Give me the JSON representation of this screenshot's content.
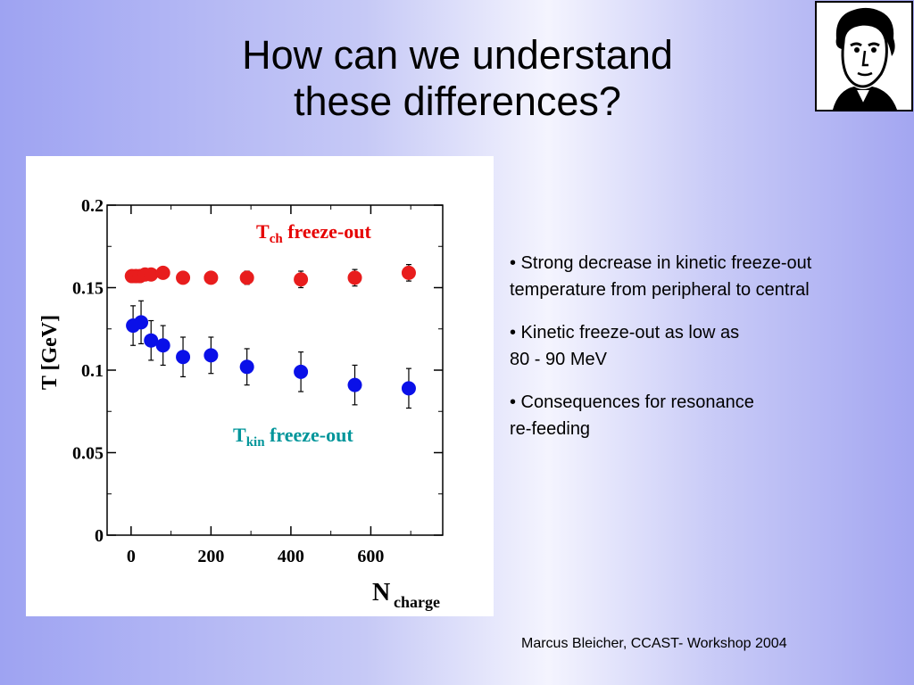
{
  "slide": {
    "title_line1": "How can we understand",
    "title_line2": "these differences?",
    "bullets": [
      [
        "• Strong decrease in kinetic freeze-out",
        "temperature from peripheral to central"
      ],
      [
        "• Kinetic freeze-out as low as",
        "80 - 90 MeV"
      ],
      [
        "• Consequences  for resonance",
        "re-feeding"
      ]
    ],
    "footer": "Marcus Bleicher, CCAST- Workshop 2004",
    "portrait_icon": "portrait-sketch-icon"
  },
  "chart_data": {
    "type": "scatter",
    "ylabel": "T [GeV]",
    "xlabel": "N",
    "xlabel_sub": "charge",
    "xlim": [
      -60,
      780
    ],
    "ylim": [
      0,
      0.2
    ],
    "xticks": [
      "0",
      "200",
      "400",
      "600"
    ],
    "yticks": [
      "0",
      "0.05",
      "0.1",
      "0.15",
      "0.2"
    ],
    "grid": false,
    "series": [
      {
        "name": "Tch freeze-out",
        "label_main": "T",
        "label_sub": "ch",
        "label_rest": " freeze-out",
        "label_color": "#e60000",
        "color": "#e81d1d",
        "x": [
          2,
          12,
          22,
          35,
          50,
          80,
          130,
          200,
          290,
          425,
          560,
          695
        ],
        "y": [
          0.157,
          0.157,
          0.157,
          0.158,
          0.158,
          0.159,
          0.156,
          0.156,
          0.156,
          0.155,
          0.156,
          0.159
        ],
        "yerr": [
          0.003,
          0.003,
          0.003,
          0.003,
          0.003,
          0.003,
          0.003,
          0.003,
          0.004,
          0.005,
          0.005,
          0.005
        ]
      },
      {
        "name": "Tkin freeze-out",
        "label_main": "T",
        "label_sub": "kin",
        "label_rest": " freeze-out",
        "label_color": "#00959a",
        "color": "#0a10e8",
        "x": [
          5,
          25,
          50,
          80,
          130,
          200,
          290,
          425,
          560,
          695
        ],
        "y": [
          0.127,
          0.129,
          0.118,
          0.115,
          0.108,
          0.109,
          0.102,
          0.099,
          0.091,
          0.089
        ],
        "yerr": [
          0.012,
          0.013,
          0.012,
          0.012,
          0.012,
          0.011,
          0.011,
          0.012,
          0.012,
          0.012
        ]
      }
    ]
  }
}
